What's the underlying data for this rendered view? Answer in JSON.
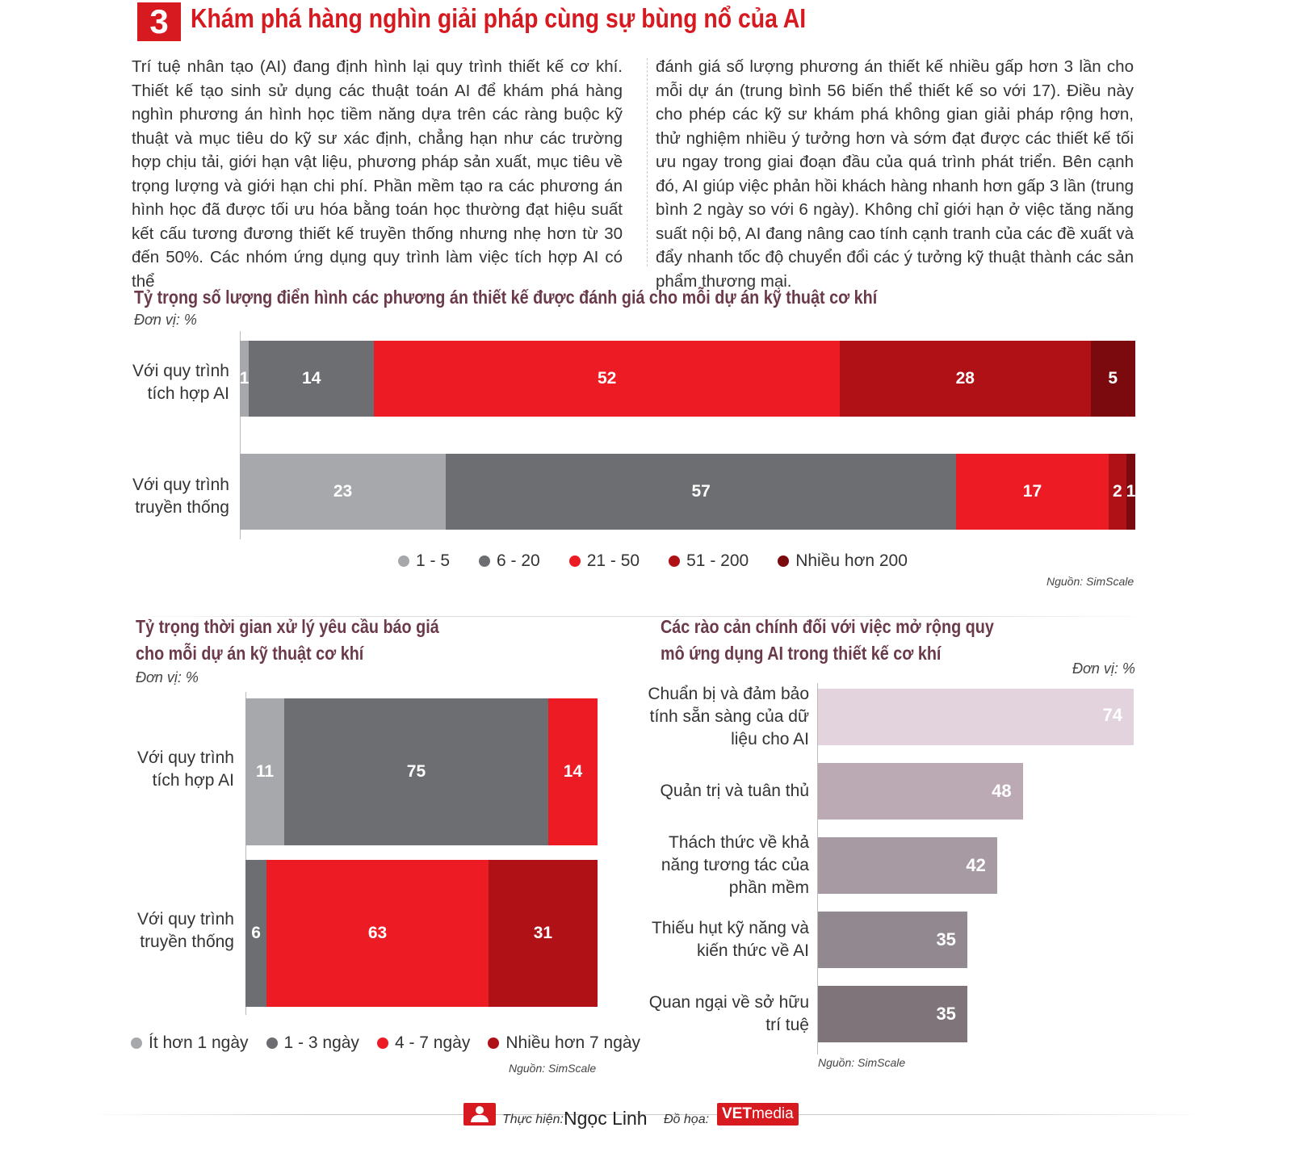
{
  "header": {
    "section_number": "3",
    "title": "Khám phá hàng nghìn giải pháp cùng sự bùng nổ của AI"
  },
  "body": {
    "left": "Trí tuệ nhân tạo (AI) đang định hình lại quy trình thiết kế cơ khí. Thiết kế tạo sinh sử dụng các thuật toán AI để khám phá hàng nghìn phương án hình học tiềm năng dựa trên các ràng buộc kỹ thuật và mục tiêu do kỹ sư xác định, chẳng hạn như các trường hợp chịu tải, giới hạn vật liệu, phương pháp sản xuất, mục tiêu về trọng lượng và giới hạn chi phí. Phần mềm tạo ra các phương án hình học đã được tối ưu hóa bằng toán học thường đạt hiệu suất kết cấu tương đương thiết kế truyền thống nhưng nhẹ hơn từ 30 đến 50%. Các nhóm ứng dụng quy trình làm việc tích hợp AI có thể",
    "right": "đánh giá số lượng phương án thiết kế nhiều gấp hơn 3 lần cho mỗi dự án (trung bình 56 biến thể thiết kế so với 17). Điều này cho phép các kỹ sư khám phá không gian giải pháp rộng hơn, thử nghiệm nhiều ý tưởng hơn và sớm đạt được các thiết kế tối ưu ngay trong giai đoạn đầu của quá trình phát triển. Bên cạnh đó, AI giúp việc phản hồi khách hàng nhanh hơn gấp 3 lần (trung bình 2 ngày so với 6 ngày). Không chỉ giới hạn ở việc tăng năng suất nội bộ, AI đang nâng cao tính cạnh tranh của các đề xuất và đẩy nhanh tốc độ chuyển đổi các ý tưởng kỹ thuật thành các sản phẩm thương mại."
  },
  "footer": {
    "made_by_label": "Thực hiện:",
    "made_by_name": "Ngọc Linh",
    "graphics_label": "Đồ họa:",
    "brand_vet": "VET",
    "brand_media": "media"
  },
  "chart_data": [
    {
      "type": "bar",
      "stacked": true,
      "orientation": "horizontal",
      "title": "Tỷ trọng số lượng điển hình các phương án thiết kế được đánh giá cho mỗi dự án kỹ thuật cơ khí",
      "unit": "Đơn vị: %",
      "source": "Nguồn: SimScale",
      "categories": [
        "Với quy trình tích hợp AI",
        "Với quy trình truyền thống"
      ],
      "series": [
        {
          "name": "1 - 5",
          "color": "#a7a8ab",
          "values": [
            1,
            23
          ]
        },
        {
          "name": "6 - 20",
          "color": "#6d6e71",
          "values": [
            14,
            57
          ]
        },
        {
          "name": "21 - 50",
          "color": "#ed1c24",
          "values": [
            52,
            17
          ]
        },
        {
          "name": "51 - 200",
          "color": "#b01117",
          "values": [
            28,
            2
          ]
        },
        {
          "name": "Nhiều hơn 200",
          "color": "#7a0a0e",
          "values": [
            5,
            1
          ]
        }
      ],
      "xlim": [
        0,
        100
      ],
      "legend": "bottom"
    },
    {
      "type": "bar",
      "stacked": true,
      "orientation": "horizontal",
      "title": "Tỷ trọng thời gian xử lý yêu cầu báo giá cho mỗi dự án kỹ thuật cơ khí",
      "unit": "Đơn vị: %",
      "source": "Nguồn: SimScale",
      "categories": [
        "Với quy trình tích hợp AI",
        "Với quy trình truyền thống"
      ],
      "series": [
        {
          "name": "Ít hơn 1 ngày",
          "color": "#a7a8ab",
          "values": [
            11,
            0
          ]
        },
        {
          "name": "1 - 3 ngày",
          "color": "#6d6e71",
          "values": [
            75,
            6
          ]
        },
        {
          "name": "4 - 7 ngày",
          "color": "#ed1c24",
          "values": [
            14,
            63
          ]
        },
        {
          "name": "Nhiều hơn 7 ngày",
          "color": "#b01117",
          "values": [
            0,
            31
          ]
        }
      ],
      "xlim": [
        0,
        100
      ],
      "legend": "bottom"
    },
    {
      "type": "bar",
      "orientation": "horizontal",
      "title": "Các rào cản chính đối với việc mở rộng quy mô ứng dụng AI trong thiết kế cơ khí",
      "unit": "Đơn vị: %",
      "source": "Nguồn: SimScale",
      "categories": [
        "Chuẩn bị và đảm bảo tính sẵn sàng của dữ liệu cho AI",
        "Quản trị và tuân thủ",
        "Thách thức về khả năng tương tác của phần mềm",
        "Thiếu hụt kỹ năng và kiến thức về AI",
        "Quan ngại về sở hữu trí tuệ"
      ],
      "values": [
        74,
        48,
        42,
        35,
        35
      ],
      "colors": [
        "#e3d3dc",
        "#bbaab4",
        "#a79aa2",
        "#928890",
        "#7f7479"
      ],
      "xlim": [
        0,
        74
      ]
    }
  ]
}
